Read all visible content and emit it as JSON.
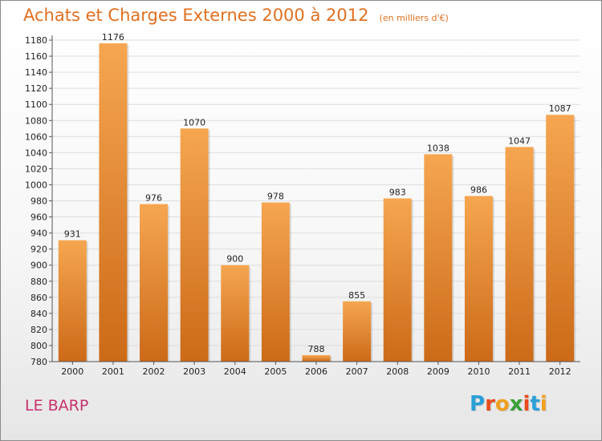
{
  "title": "Achats et Charges Externes 2000 à 2012",
  "unit_note": "(en milliers d'€)",
  "commune": "LE BARP",
  "logo": {
    "text": "Proxiti",
    "letter_colors": [
      "#2aa0d8",
      "#e84c1c",
      "#f0a020",
      "#3aa03a",
      "#e84c1c",
      "#2aa0d8",
      "#f0a020"
    ]
  },
  "colors": {
    "title": "#e07020",
    "commune": "#c8326e",
    "bar_light": "#f6a650",
    "bar_dark": "#cc6a18",
    "gridline": "#dedede",
    "axis": "#555555",
    "text": "#222222"
  },
  "chart_data": {
    "type": "bar",
    "title": "Achats et Charges Externes 2000 à 2012",
    "categories": [
      "2000",
      "2001",
      "2002",
      "2003",
      "2004",
      "2005",
      "2006",
      "2007",
      "2008",
      "2009",
      "2010",
      "2011",
      "2012"
    ],
    "values": [
      931,
      1176,
      976,
      1070,
      900,
      978,
      788,
      855,
      983,
      1038,
      986,
      1047,
      1087
    ],
    "ylim": [
      780,
      1180
    ],
    "yticks": [
      780,
      800,
      820,
      840,
      860,
      880,
      900,
      920,
      940,
      960,
      980,
      1000,
      1020,
      1040,
      1060,
      1080,
      1100,
      1120,
      1140,
      1160,
      1180
    ],
    "xlabel": "",
    "ylabel": "",
    "grid": true,
    "data_labels": true
  }
}
